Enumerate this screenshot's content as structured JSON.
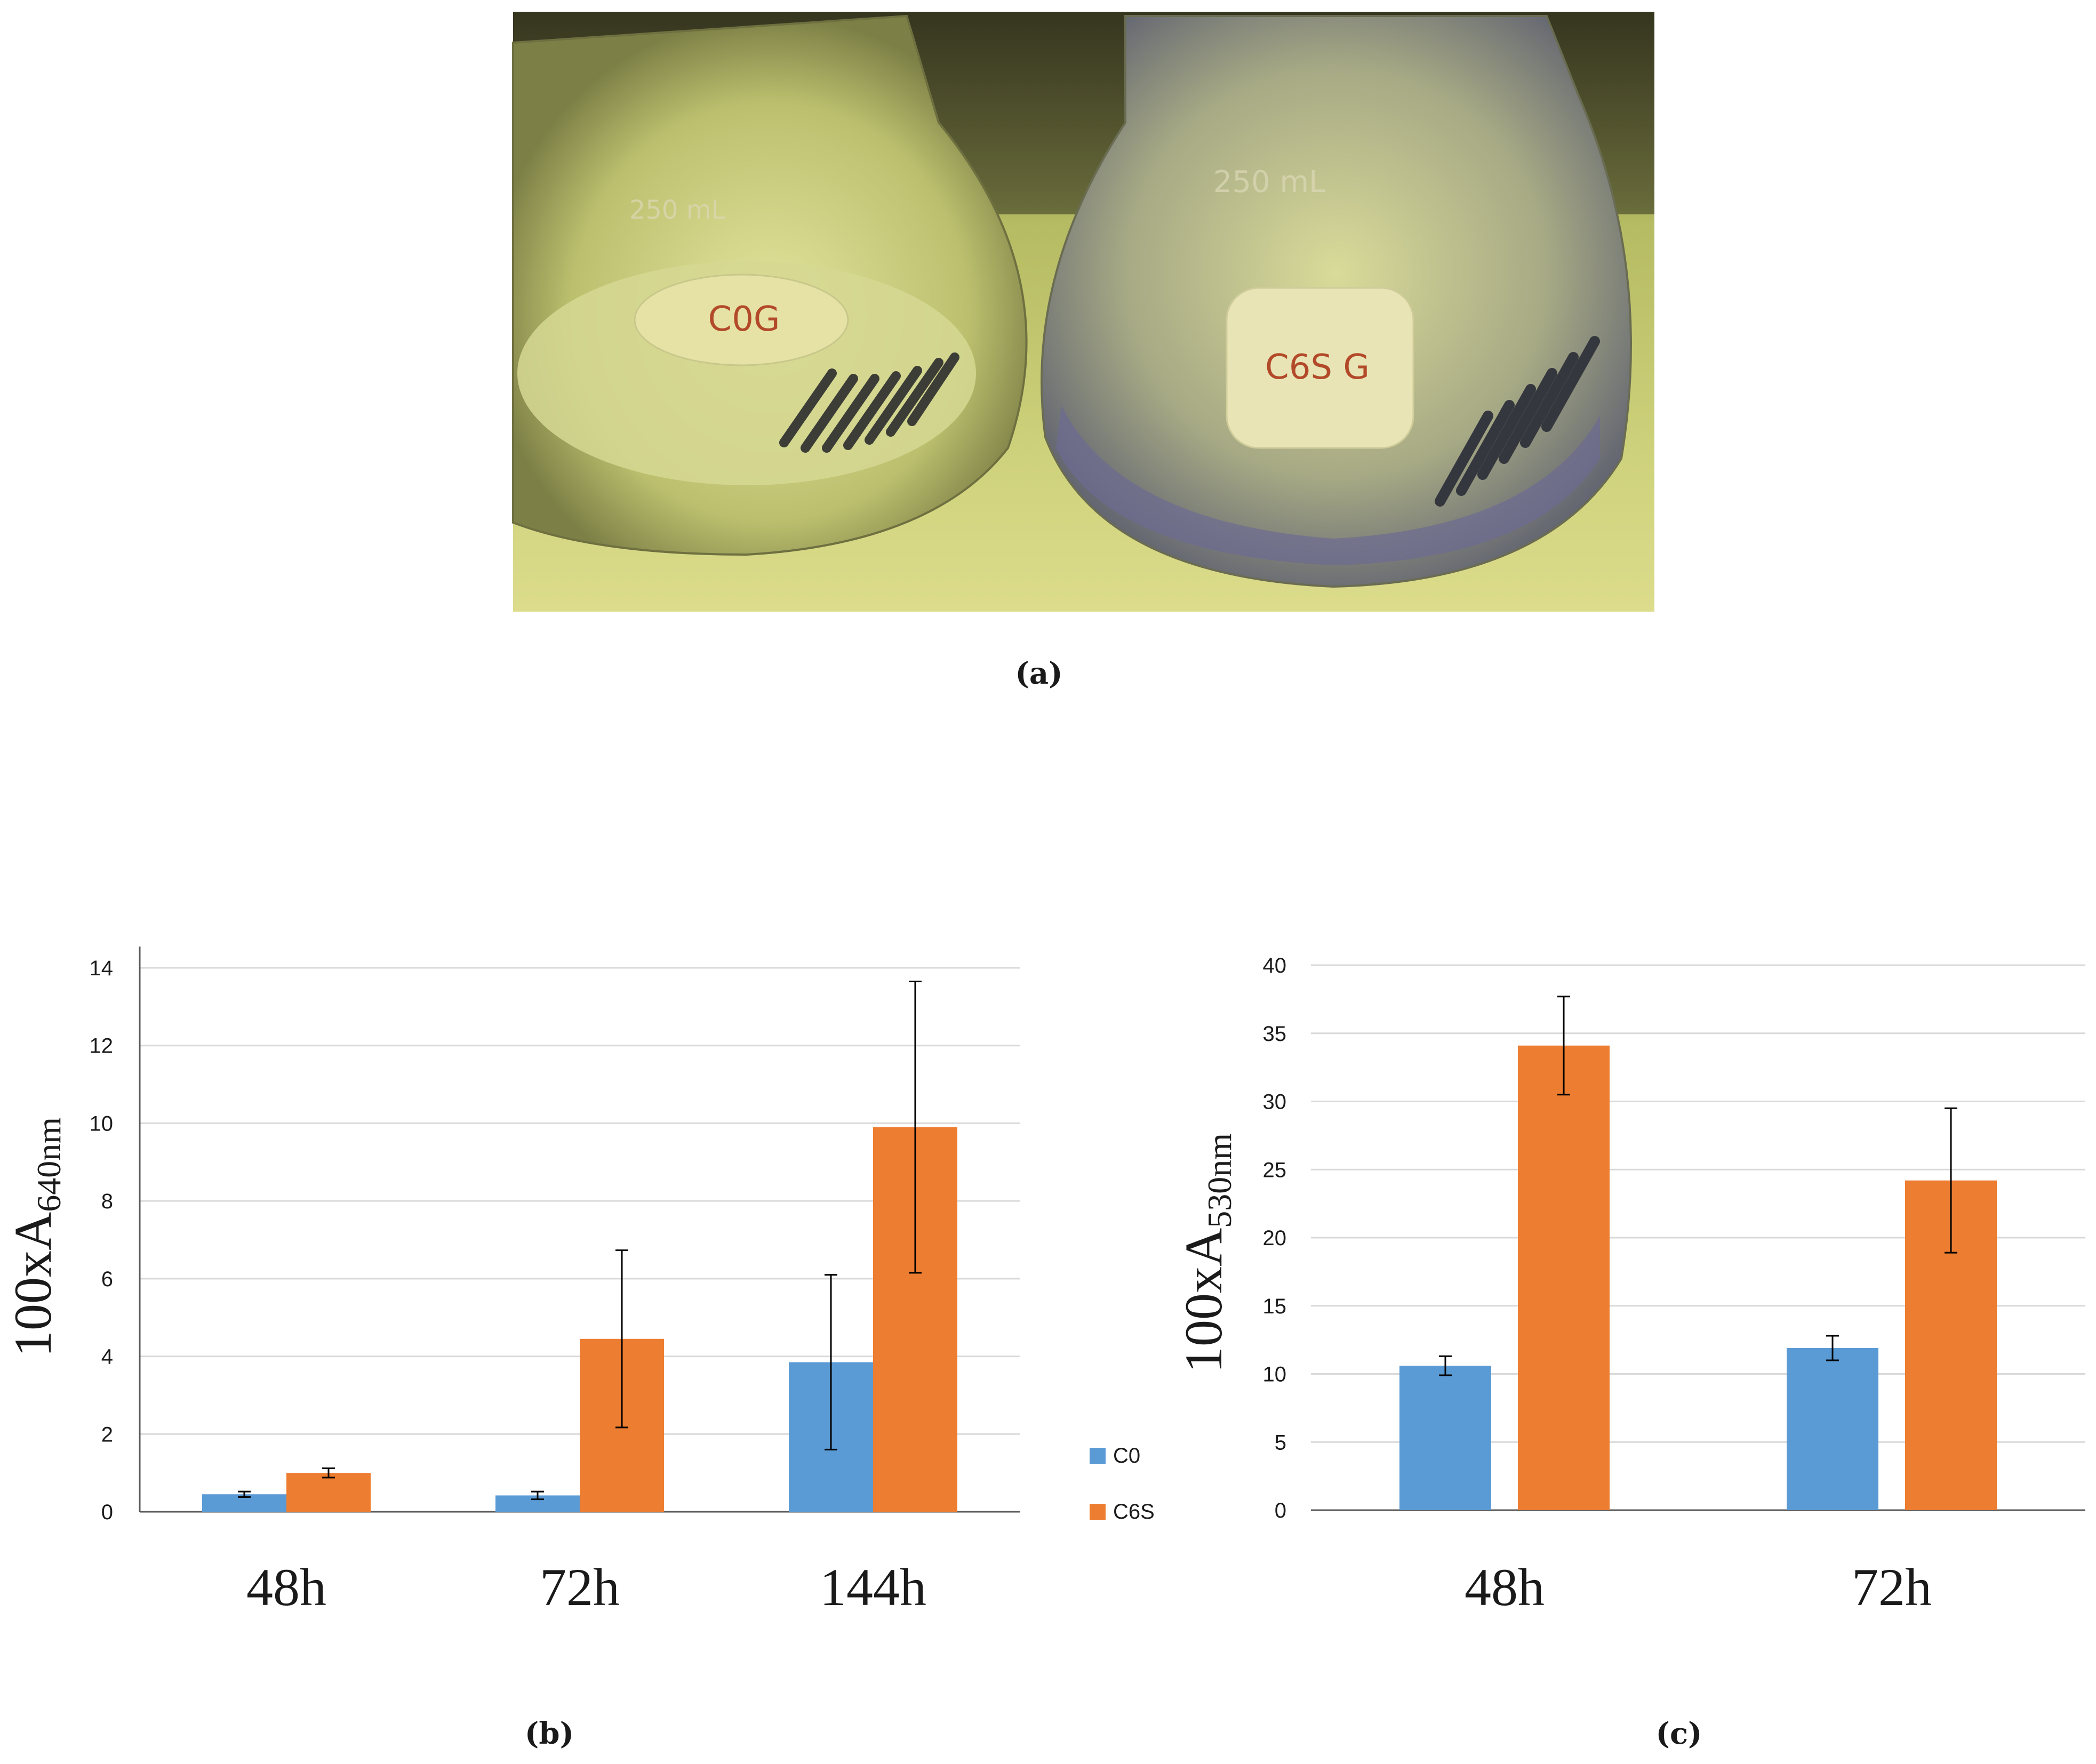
{
  "panel_labels": {
    "a": "(a)",
    "b": "(b)",
    "c": "(c)"
  },
  "photo": {
    "flask_labels": [
      "C0G",
      "C6S G"
    ],
    "flask_volume_mark": "250 mL"
  },
  "colors": {
    "C0": "#5B9BD5",
    "C6S": "#ED7D31",
    "grid": "#D9D9D9",
    "axis": "#595959",
    "error_bar": "#000000"
  },
  "chart_data": [
    {
      "id": "b",
      "type": "bar",
      "categories": [
        "48h",
        "72h",
        "144h"
      ],
      "series": [
        {
          "name": "C0",
          "values": [
            0.45,
            0.42,
            3.85
          ],
          "error": [
            0.07,
            0.1,
            2.25
          ]
        },
        {
          "name": "C6S",
          "values": [
            1.0,
            4.45,
            9.9
          ],
          "error": [
            0.12,
            2.28,
            3.75
          ]
        }
      ],
      "ylabel": {
        "main": "100xA",
        "sub": "640nm"
      },
      "ylim": [
        0,
        14
      ],
      "yticks": [
        0,
        2,
        4,
        6,
        8,
        10,
        12,
        14
      ],
      "grid": true,
      "legend": {
        "position": "right",
        "entries": [
          "C0",
          "C6S"
        ]
      }
    },
    {
      "id": "c",
      "type": "bar",
      "categories": [
        "48h",
        "72h"
      ],
      "series": [
        {
          "name": "C0",
          "values": [
            10.6,
            11.9
          ],
          "error": [
            0.7,
            0.9
          ]
        },
        {
          "name": "C6S",
          "values": [
            34.1,
            24.2
          ],
          "error": [
            3.6,
            5.3
          ]
        }
      ],
      "ylabel": {
        "main": "100xA",
        "sub": "530nm"
      },
      "ylim": [
        0,
        40
      ],
      "yticks": [
        0,
        5,
        10,
        15,
        20,
        25,
        30,
        35,
        40
      ],
      "grid": true
    }
  ]
}
